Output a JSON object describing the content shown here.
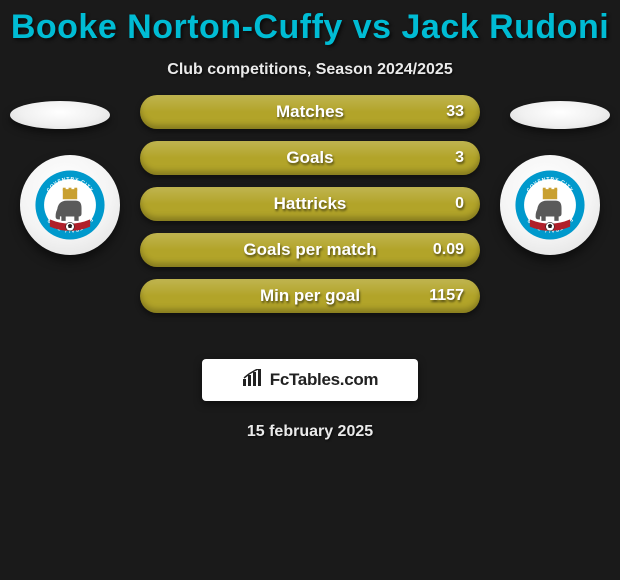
{
  "title": "Booke Norton-Cuffy vs Jack Rudoni",
  "title_color": "#00bcd4",
  "subtitle": "Club competitions, Season 2024/2025",
  "date": "15 february 2025",
  "brand": "FcTables.com",
  "bar_color": "#b2a429",
  "stats": [
    {
      "label": "Matches",
      "value": "33"
    },
    {
      "label": "Goals",
      "value": "3"
    },
    {
      "label": "Hattricks",
      "value": "0"
    },
    {
      "label": "Goals per match",
      "value": "0.09"
    },
    {
      "label": "Min per goal",
      "value": "1157"
    }
  ],
  "crest": {
    "ring_text_top": "COVENTRY CITY",
    "ring_text_bottom": "FOOTBALL CLUB",
    "ring_color": "#0099cc",
    "banner_color": "#b0202a"
  }
}
